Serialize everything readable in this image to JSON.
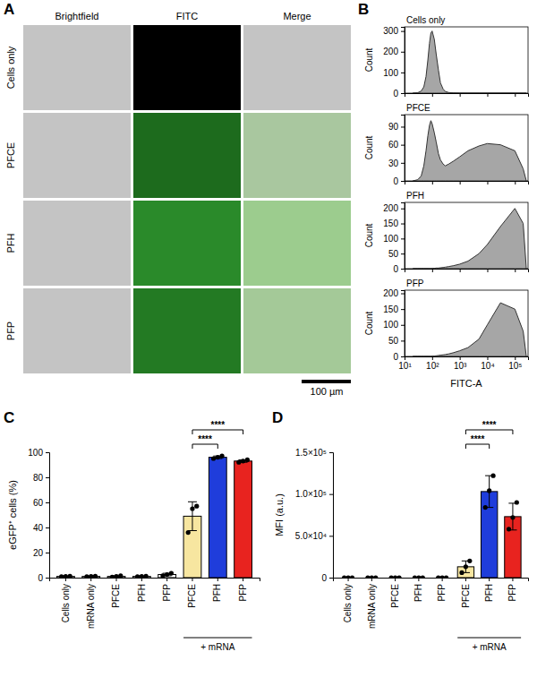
{
  "chart_data": [
    {
      "panel": "A",
      "type": "image_grid",
      "columns": [
        "Brightfield",
        "FITC",
        "Merge"
      ],
      "rows": [
        "Cells only",
        "PFCE",
        "PFH",
        "PFP"
      ],
      "scale_bar": "100 µm"
    },
    {
      "panel": "B",
      "type": "area",
      "log": "x",
      "x_label": "FITC-A",
      "y_label": "Count",
      "xlim": [
        10,
        300000
      ],
      "xticks": [
        {
          "value": 10,
          "label": "10¹"
        },
        {
          "value": 100,
          "label": "10²"
        },
        {
          "value": 1000,
          "label": "10³"
        },
        {
          "value": 10000,
          "label": "10⁴"
        },
        {
          "value": 100000,
          "label": "10⁵"
        }
      ],
      "x": [
        20,
        30,
        40,
        50,
        60,
        70,
        80,
        90,
        100,
        120,
        140,
        170,
        200,
        250,
        300,
        400,
        600,
        1000,
        2000,
        5000,
        10000,
        30000,
        100000,
        200000,
        260000
      ],
      "series": [
        {
          "name": "Cells only",
          "color": "#a6a6a6",
          "ylim": [
            0,
            320
          ],
          "yticks": [
            0,
            100,
            200,
            300
          ],
          "values": [
            0,
            2,
            10,
            30,
            80,
            160,
            240,
            290,
            300,
            260,
            190,
            110,
            50,
            20,
            8,
            3,
            1,
            0,
            0,
            0,
            0,
            0,
            0,
            0,
            0
          ]
        },
        {
          "name": "PFCE",
          "color": "#a6a6a6",
          "ylim": [
            0,
            110
          ],
          "yticks": [
            0,
            30,
            60,
            90
          ],
          "values": [
            0,
            2,
            8,
            25,
            50,
            75,
            92,
            100,
            95,
            80,
            65,
            45,
            35,
            28,
            25,
            28,
            33,
            40,
            50,
            58,
            62,
            60,
            50,
            20,
            0
          ]
        },
        {
          "name": "PFH",
          "color": "#a6a6a6",
          "ylim": [
            0,
            220
          ],
          "yticks": [
            0,
            50,
            100,
            150,
            200
          ],
          "values": [
            0,
            0,
            0,
            0,
            0,
            0,
            0,
            0,
            1,
            1,
            2,
            2,
            3,
            4,
            5,
            7,
            10,
            15,
            25,
            50,
            80,
            140,
            200,
            150,
            0
          ]
        },
        {
          "name": "PFP",
          "color": "#a6a6a6",
          "ylim": [
            0,
            210
          ],
          "yticks": [
            0,
            50,
            100,
            150,
            200
          ],
          "values": [
            0,
            0,
            0,
            0,
            0,
            0,
            0,
            0,
            1,
            1,
            2,
            3,
            4,
            5,
            6,
            8,
            12,
            18,
            28,
            55,
            100,
            170,
            150,
            80,
            0
          ]
        }
      ]
    },
    {
      "panel": "C",
      "type": "bar",
      "y_label": "eGFP⁺ cells (%)",
      "categories": [
        "Cells only",
        "mRNA only",
        "PFCE",
        "PFH",
        "PFP",
        "PFCE",
        "PFH",
        "PFP"
      ],
      "values": [
        1,
        1,
        1,
        1,
        2.5,
        49,
        96,
        93
      ],
      "errors": [
        0.1,
        0.2,
        0.5,
        0.2,
        1,
        11.5,
        1,
        1
      ],
      "points": [
        [
          0.9,
          1.0,
          1.1
        ],
        [
          0.8,
          1.0,
          1.2
        ],
        [
          0.5,
          1.0,
          1.5
        ],
        [
          0.8,
          1.0,
          1.2
        ],
        [
          1.5,
          2.5,
          3.5
        ],
        [
          36,
          55,
          57
        ],
        [
          95,
          96,
          97
        ],
        [
          92,
          93,
          94
        ]
      ],
      "colors": [
        "#ffffff",
        "#ffffff",
        "#ffffff",
        "#ffffff",
        "#ffffff",
        "#f7e6a0",
        "#1f3ddb",
        "#e8231f"
      ],
      "ylim": [
        0,
        100
      ],
      "yticks": [
        0,
        20,
        40,
        60,
        80,
        100
      ],
      "groups": [
        {
          "label": "+ mRNA",
          "from": 5,
          "to": 7
        }
      ],
      "annotations": [
        {
          "from": 5,
          "to": 6,
          "label": "****"
        },
        {
          "from": 5,
          "to": 7,
          "label": "****"
        }
      ]
    },
    {
      "panel": "D",
      "type": "bar",
      "y_label": "MFI (a.u.)",
      "categories": [
        "Cells only",
        "mRNA only",
        "PFCE",
        "PFH",
        "PFP",
        "PFCE",
        "PFH",
        "PFP"
      ],
      "values": [
        0,
        0,
        0,
        0,
        0,
        13000,
        103000,
        73000
      ],
      "errors": [
        0,
        0,
        0,
        0,
        0,
        7000,
        19000,
        16000
      ],
      "points": [
        [
          0,
          0,
          0
        ],
        [
          0,
          0,
          0
        ],
        [
          0,
          0,
          0
        ],
        [
          0,
          0,
          0
        ],
        [
          0,
          0,
          0
        ],
        [
          6000,
          13000,
          20000
        ],
        [
          84000,
          104000,
          122000
        ],
        [
          58000,
          72000,
          90000
        ]
      ],
      "colors": [
        "#ffffff",
        "#ffffff",
        "#ffffff",
        "#ffffff",
        "#ffffff",
        "#f7e6a0",
        "#1f3ddb",
        "#e8231f"
      ],
      "ylim": [
        0,
        150000
      ],
      "yticks": [
        0,
        {
          "value": 50000,
          "label": "5.0×10⁴"
        },
        {
          "value": 100000,
          "label": "1.0×10⁵"
        },
        {
          "value": 150000,
          "label": "1.5×10⁵"
        }
      ],
      "groups": [
        {
          "label": "+ mRNA",
          "from": 5,
          "to": 7
        }
      ],
      "annotations": [
        {
          "from": 5,
          "to": 6,
          "label": "****"
        },
        {
          "from": 5,
          "to": 7,
          "label": "****"
        }
      ]
    }
  ]
}
